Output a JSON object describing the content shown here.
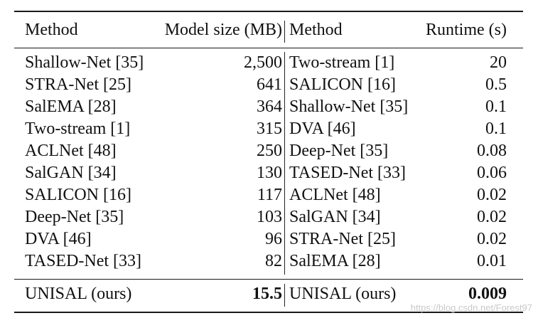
{
  "table": {
    "headers": {
      "method_left": "Method",
      "model_size": "Model size (MB)",
      "method_right": "Method",
      "runtime": "Runtime (s)"
    },
    "rows": [
      {
        "method_a": "Shallow-Net [35]",
        "size": "2,500",
        "method_b": "Two-stream [1]",
        "runtime": "20"
      },
      {
        "method_a": "STRA-Net [25]",
        "size": "641",
        "method_b": "SALICON [16]",
        "runtime": "0.5"
      },
      {
        "method_a": "SalEMA [28]",
        "size": "364",
        "method_b": "Shallow-Net [35]",
        "runtime": "0.1"
      },
      {
        "method_a": "Two-stream [1]",
        "size": "315",
        "method_b": "DVA [46]",
        "runtime": "0.1"
      },
      {
        "method_a": "ACLNet [48]",
        "size": "250",
        "method_b": "Deep-Net [35]",
        "runtime": "0.08"
      },
      {
        "method_a": "SalGAN [34]",
        "size": "130",
        "method_b": "TASED-Net [33]",
        "runtime": "0.06"
      },
      {
        "method_a": "SALICON [16]",
        "size": "117",
        "method_b": "ACLNet [48]",
        "runtime": "0.02"
      },
      {
        "method_a": "Deep-Net [35]",
        "size": "103",
        "method_b": "SalGAN [34]",
        "runtime": "0.02"
      },
      {
        "method_a": "DVA [46]",
        "size": "96",
        "method_b": "STRA-Net [25]",
        "runtime": "0.02"
      },
      {
        "method_a": "TASED-Net [33]",
        "size": "82",
        "method_b": "SalEMA [28]",
        "runtime": "0.01"
      }
    ],
    "final": {
      "method_a": "UNISAL (ours)",
      "size": "15.5",
      "method_b": "UNISAL (ours)",
      "runtime": "0.009"
    }
  },
  "watermark": "https://blog.csdn.net/Forest97"
}
